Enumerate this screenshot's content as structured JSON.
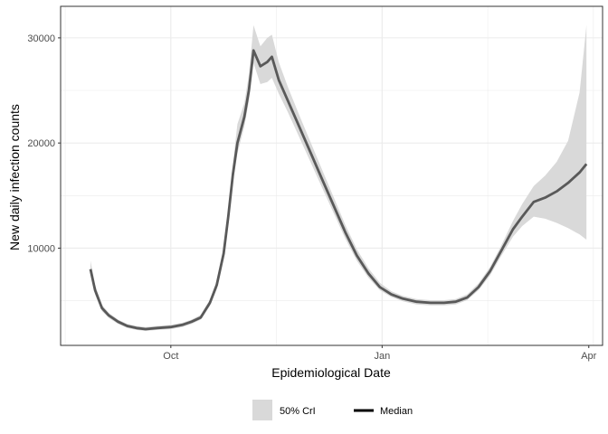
{
  "chart_data": {
    "type": "line",
    "title": "",
    "xlabel": "Epidemiological Date",
    "ylabel": "New daily infection counts",
    "x_ticks": [
      {
        "label": "Oct",
        "date": "2020-10-01"
      },
      {
        "label": "Jan",
        "date": "2021-01-01"
      },
      {
        "label": "Apr",
        "date": "2021-04-01"
      }
    ],
    "y_ticks": [
      10000,
      20000,
      30000
    ],
    "xlim": [
      "2020-08-14",
      "2021-04-07"
    ],
    "ylim": [
      750,
      33000
    ],
    "grid": true,
    "legend": {
      "position": "bottom",
      "ribbon_label": "50% CrI",
      "line_label": "Median"
    },
    "colors": {
      "ribbon": "#d9d9d9",
      "median": "#595959",
      "grid": "#ebebeb",
      "panel_border": "#333333"
    },
    "series": [
      {
        "name": "Median",
        "points": [
          [
            "2020-08-27",
            8000
          ],
          [
            "2020-08-29",
            6000
          ],
          [
            "2020-09-01",
            4300
          ],
          [
            "2020-09-04",
            3600
          ],
          [
            "2020-09-08",
            3000
          ],
          [
            "2020-09-12",
            2600
          ],
          [
            "2020-09-16",
            2400
          ],
          [
            "2020-09-20",
            2300
          ],
          [
            "2020-09-25",
            2400
          ],
          [
            "2020-10-01",
            2500
          ],
          [
            "2020-10-06",
            2700
          ],
          [
            "2020-10-10",
            3000
          ],
          [
            "2020-10-14",
            3400
          ],
          [
            "2020-10-18",
            4800
          ],
          [
            "2020-10-21",
            6500
          ],
          [
            "2020-10-24",
            9500
          ],
          [
            "2020-10-26",
            13000
          ],
          [
            "2020-10-28",
            17000
          ],
          [
            "2020-10-30",
            20000
          ],
          [
            "2020-11-02",
            22500
          ],
          [
            "2020-11-04",
            25000
          ],
          [
            "2020-11-06",
            28800
          ],
          [
            "2020-11-09",
            27300
          ],
          [
            "2020-11-12",
            27700
          ],
          [
            "2020-11-14",
            28200
          ],
          [
            "2020-11-17",
            26000
          ],
          [
            "2020-11-21",
            24000
          ],
          [
            "2020-11-26",
            21500
          ],
          [
            "2020-12-01",
            19000
          ],
          [
            "2020-12-06",
            16500
          ],
          [
            "2020-12-11",
            14000
          ],
          [
            "2020-12-16",
            11500
          ],
          [
            "2020-12-21",
            9300
          ],
          [
            "2020-12-26",
            7600
          ],
          [
            "2020-12-31",
            6300
          ],
          [
            "2021-01-05",
            5600
          ],
          [
            "2021-01-10",
            5200
          ],
          [
            "2021-01-16",
            4900
          ],
          [
            "2021-01-22",
            4800
          ],
          [
            "2021-01-28",
            4800
          ],
          [
            "2021-02-02",
            4900
          ],
          [
            "2021-02-07",
            5300
          ],
          [
            "2021-02-12",
            6300
          ],
          [
            "2021-02-17",
            7800
          ],
          [
            "2021-02-22",
            9800
          ],
          [
            "2021-02-27",
            11800
          ],
          [
            "2021-03-03",
            13000
          ],
          [
            "2021-03-08",
            14400
          ],
          [
            "2021-03-13",
            14800
          ],
          [
            "2021-03-18",
            15400
          ],
          [
            "2021-03-23",
            16200
          ],
          [
            "2021-03-28",
            17200
          ],
          [
            "2021-03-31",
            18000
          ]
        ]
      },
      {
        "name": "50% CrI",
        "band": [
          [
            "2020-08-27",
            7500,
            8800
          ],
          [
            "2020-08-29",
            5600,
            6500
          ],
          [
            "2020-09-01",
            4000,
            4600
          ],
          [
            "2020-09-04",
            3350,
            3850
          ],
          [
            "2020-09-08",
            2800,
            3200
          ],
          [
            "2020-09-12",
            2400,
            2800
          ],
          [
            "2020-09-16",
            2220,
            2600
          ],
          [
            "2020-09-20",
            2120,
            2500
          ],
          [
            "2020-09-25",
            2220,
            2600
          ],
          [
            "2020-10-01",
            2300,
            2700
          ],
          [
            "2020-10-06",
            2500,
            2900
          ],
          [
            "2020-10-10",
            2800,
            3200
          ],
          [
            "2020-10-14",
            3200,
            3650
          ],
          [
            "2020-10-18",
            4500,
            5100
          ],
          [
            "2020-10-21",
            6100,
            6900
          ],
          [
            "2020-10-24",
            9000,
            10000
          ],
          [
            "2020-10-26",
            12300,
            13700
          ],
          [
            "2020-10-28",
            16200,
            18000
          ],
          [
            "2020-10-30",
            19000,
            21800
          ],
          [
            "2020-11-02",
            21600,
            23800
          ],
          [
            "2020-11-04",
            24000,
            26500
          ],
          [
            "2020-11-06",
            27600,
            31200
          ],
          [
            "2020-11-09",
            25600,
            29200
          ],
          [
            "2020-11-12",
            25800,
            30000
          ],
          [
            "2020-11-14",
            26200,
            30300
          ],
          [
            "2020-11-17",
            24700,
            27700
          ],
          [
            "2020-11-21",
            22900,
            25300
          ],
          [
            "2020-11-26",
            20500,
            22600
          ],
          [
            "2020-12-01",
            18100,
            20000
          ],
          [
            "2020-12-06",
            15700,
            17400
          ],
          [
            "2020-12-11",
            13300,
            14800
          ],
          [
            "2020-12-16",
            10900,
            12200
          ],
          [
            "2020-12-21",
            8800,
            9900
          ],
          [
            "2020-12-26",
            7200,
            8100
          ],
          [
            "2020-12-31",
            6000,
            6700
          ],
          [
            "2021-01-05",
            5350,
            5900
          ],
          [
            "2021-01-10",
            4950,
            5450
          ],
          [
            "2021-01-16",
            4650,
            5150
          ],
          [
            "2021-01-22",
            4550,
            5050
          ],
          [
            "2021-01-28",
            4550,
            5050
          ],
          [
            "2021-02-02",
            4650,
            5150
          ],
          [
            "2021-02-07",
            5050,
            5600
          ],
          [
            "2021-02-12",
            6000,
            6650
          ],
          [
            "2021-02-17",
            7400,
            8200
          ],
          [
            "2021-02-22",
            9300,
            10300
          ],
          [
            "2021-02-27",
            11100,
            12600
          ],
          [
            "2021-03-03",
            12100,
            14200
          ],
          [
            "2021-03-08",
            13000,
            15900
          ],
          [
            "2021-03-13",
            12800,
            16900
          ],
          [
            "2021-03-18",
            12400,
            18200
          ],
          [
            "2021-03-23",
            11900,
            20200
          ],
          [
            "2021-03-28",
            11300,
            24800
          ],
          [
            "2021-03-31",
            10800,
            31200
          ]
        ]
      }
    ]
  }
}
